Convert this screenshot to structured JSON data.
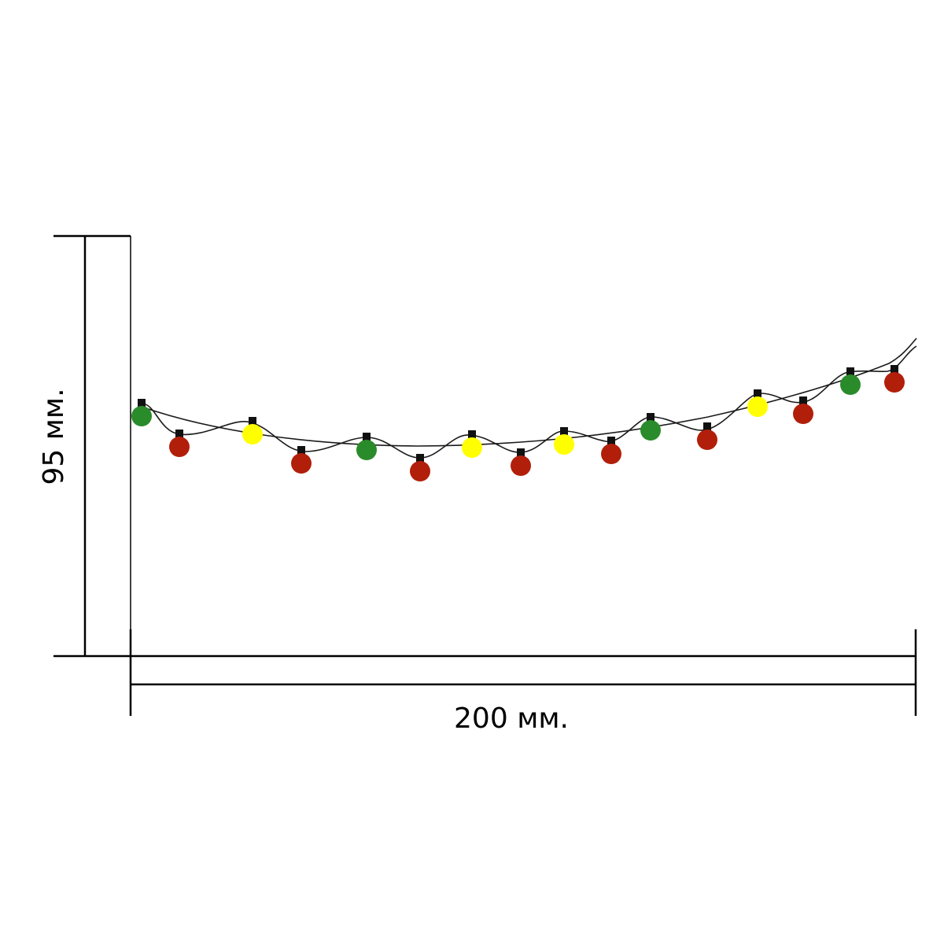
{
  "dimensions": {
    "height_label": "95 мм.",
    "width_label": "200 мм."
  },
  "colors": {
    "wire": "#1a1a1a",
    "socket": "#111111",
    "dimension_line": "#000000",
    "bulb_green": "#2a8b2a",
    "bulb_red": "#b11f0a",
    "bulb_yellow": "#ffff00"
  },
  "bulbs": [
    {
      "color": "green"
    },
    {
      "color": "red"
    },
    {
      "color": "yellow"
    },
    {
      "color": "red"
    },
    {
      "color": "green"
    },
    {
      "color": "red"
    },
    {
      "color": "yellow"
    },
    {
      "color": "red"
    },
    {
      "color": "yellow"
    },
    {
      "color": "red"
    },
    {
      "color": "green"
    },
    {
      "color": "red"
    },
    {
      "color": "yellow"
    },
    {
      "color": "red"
    },
    {
      "color": "green"
    },
    {
      "color": "red"
    }
  ]
}
